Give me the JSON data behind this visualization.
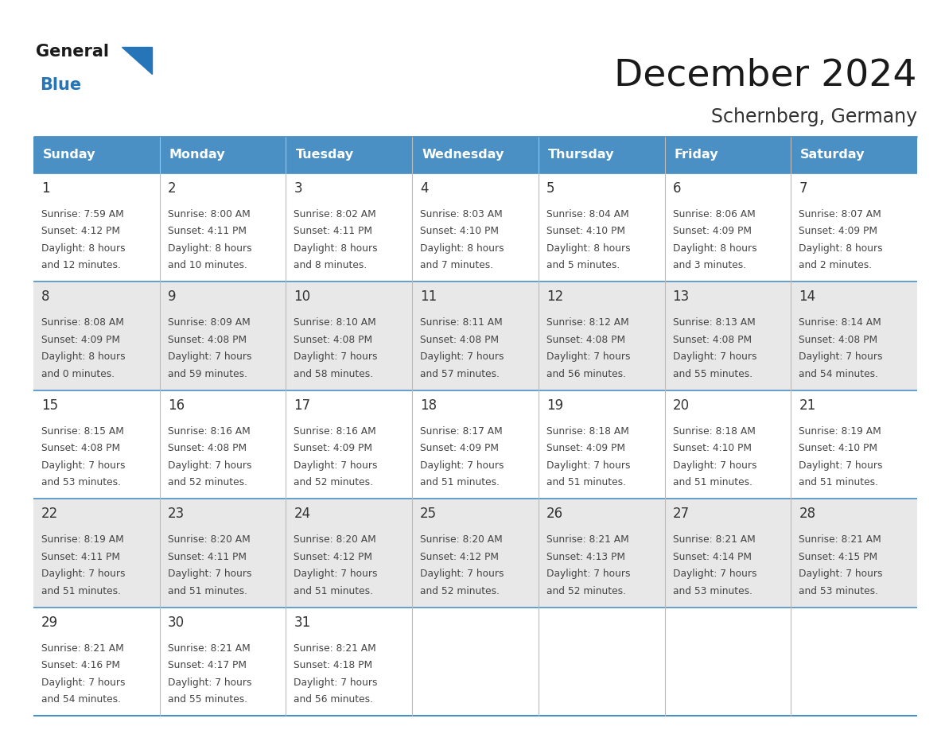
{
  "title": "December 2024",
  "subtitle": "Schernberg, Germany",
  "header_color": "#4a90c4",
  "header_text_color": "#ffffff",
  "day_names": [
    "Sunday",
    "Monday",
    "Tuesday",
    "Wednesday",
    "Thursday",
    "Friday",
    "Saturday"
  ],
  "bg_color": "#ffffff",
  "cell_bg_even": "#e8e8e8",
  "cell_bg_odd": "#ffffff",
  "border_color": "#4a90c4",
  "day_num_color": "#333333",
  "text_color": "#444444",
  "weeks": [
    [
      {
        "day": 1,
        "sunrise": "7:59 AM",
        "sunset": "4:12 PM",
        "daylight_h": "8 hours",
        "daylight_m": "and 12 minutes."
      },
      {
        "day": 2,
        "sunrise": "8:00 AM",
        "sunset": "4:11 PM",
        "daylight_h": "8 hours",
        "daylight_m": "and 10 minutes."
      },
      {
        "day": 3,
        "sunrise": "8:02 AM",
        "sunset": "4:11 PM",
        "daylight_h": "8 hours",
        "daylight_m": "and 8 minutes."
      },
      {
        "day": 4,
        "sunrise": "8:03 AM",
        "sunset": "4:10 PM",
        "daylight_h": "8 hours",
        "daylight_m": "and 7 minutes."
      },
      {
        "day": 5,
        "sunrise": "8:04 AM",
        "sunset": "4:10 PM",
        "daylight_h": "8 hours",
        "daylight_m": "and 5 minutes."
      },
      {
        "day": 6,
        "sunrise": "8:06 AM",
        "sunset": "4:09 PM",
        "daylight_h": "8 hours",
        "daylight_m": "and 3 minutes."
      },
      {
        "day": 7,
        "sunrise": "8:07 AM",
        "sunset": "4:09 PM",
        "daylight_h": "8 hours",
        "daylight_m": "and 2 minutes."
      }
    ],
    [
      {
        "day": 8,
        "sunrise": "8:08 AM",
        "sunset": "4:09 PM",
        "daylight_h": "8 hours",
        "daylight_m": "and 0 minutes."
      },
      {
        "day": 9,
        "sunrise": "8:09 AM",
        "sunset": "4:08 PM",
        "daylight_h": "7 hours",
        "daylight_m": "and 59 minutes."
      },
      {
        "day": 10,
        "sunrise": "8:10 AM",
        "sunset": "4:08 PM",
        "daylight_h": "7 hours",
        "daylight_m": "and 58 minutes."
      },
      {
        "day": 11,
        "sunrise": "8:11 AM",
        "sunset": "4:08 PM",
        "daylight_h": "7 hours",
        "daylight_m": "and 57 minutes."
      },
      {
        "day": 12,
        "sunrise": "8:12 AM",
        "sunset": "4:08 PM",
        "daylight_h": "7 hours",
        "daylight_m": "and 56 minutes."
      },
      {
        "day": 13,
        "sunrise": "8:13 AM",
        "sunset": "4:08 PM",
        "daylight_h": "7 hours",
        "daylight_m": "and 55 minutes."
      },
      {
        "day": 14,
        "sunrise": "8:14 AM",
        "sunset": "4:08 PM",
        "daylight_h": "7 hours",
        "daylight_m": "and 54 minutes."
      }
    ],
    [
      {
        "day": 15,
        "sunrise": "8:15 AM",
        "sunset": "4:08 PM",
        "daylight_h": "7 hours",
        "daylight_m": "and 53 minutes."
      },
      {
        "day": 16,
        "sunrise": "8:16 AM",
        "sunset": "4:08 PM",
        "daylight_h": "7 hours",
        "daylight_m": "and 52 minutes."
      },
      {
        "day": 17,
        "sunrise": "8:16 AM",
        "sunset": "4:09 PM",
        "daylight_h": "7 hours",
        "daylight_m": "and 52 minutes."
      },
      {
        "day": 18,
        "sunrise": "8:17 AM",
        "sunset": "4:09 PM",
        "daylight_h": "7 hours",
        "daylight_m": "and 51 minutes."
      },
      {
        "day": 19,
        "sunrise": "8:18 AM",
        "sunset": "4:09 PM",
        "daylight_h": "7 hours",
        "daylight_m": "and 51 minutes."
      },
      {
        "day": 20,
        "sunrise": "8:18 AM",
        "sunset": "4:10 PM",
        "daylight_h": "7 hours",
        "daylight_m": "and 51 minutes."
      },
      {
        "day": 21,
        "sunrise": "8:19 AM",
        "sunset": "4:10 PM",
        "daylight_h": "7 hours",
        "daylight_m": "and 51 minutes."
      }
    ],
    [
      {
        "day": 22,
        "sunrise": "8:19 AM",
        "sunset": "4:11 PM",
        "daylight_h": "7 hours",
        "daylight_m": "and 51 minutes."
      },
      {
        "day": 23,
        "sunrise": "8:20 AM",
        "sunset": "4:11 PM",
        "daylight_h": "7 hours",
        "daylight_m": "and 51 minutes."
      },
      {
        "day": 24,
        "sunrise": "8:20 AM",
        "sunset": "4:12 PM",
        "daylight_h": "7 hours",
        "daylight_m": "and 51 minutes."
      },
      {
        "day": 25,
        "sunrise": "8:20 AM",
        "sunset": "4:12 PM",
        "daylight_h": "7 hours",
        "daylight_m": "and 52 minutes."
      },
      {
        "day": 26,
        "sunrise": "8:21 AM",
        "sunset": "4:13 PM",
        "daylight_h": "7 hours",
        "daylight_m": "and 52 minutes."
      },
      {
        "day": 27,
        "sunrise": "8:21 AM",
        "sunset": "4:14 PM",
        "daylight_h": "7 hours",
        "daylight_m": "and 53 minutes."
      },
      {
        "day": 28,
        "sunrise": "8:21 AM",
        "sunset": "4:15 PM",
        "daylight_h": "7 hours",
        "daylight_m": "and 53 minutes."
      }
    ],
    [
      {
        "day": 29,
        "sunrise": "8:21 AM",
        "sunset": "4:16 PM",
        "daylight_h": "7 hours",
        "daylight_m": "and 54 minutes."
      },
      {
        "day": 30,
        "sunrise": "8:21 AM",
        "sunset": "4:17 PM",
        "daylight_h": "7 hours",
        "daylight_m": "and 55 minutes."
      },
      {
        "day": 31,
        "sunrise": "8:21 AM",
        "sunset": "4:18 PM",
        "daylight_h": "7 hours",
        "daylight_m": "and 56 minutes."
      },
      null,
      null,
      null,
      null
    ]
  ]
}
